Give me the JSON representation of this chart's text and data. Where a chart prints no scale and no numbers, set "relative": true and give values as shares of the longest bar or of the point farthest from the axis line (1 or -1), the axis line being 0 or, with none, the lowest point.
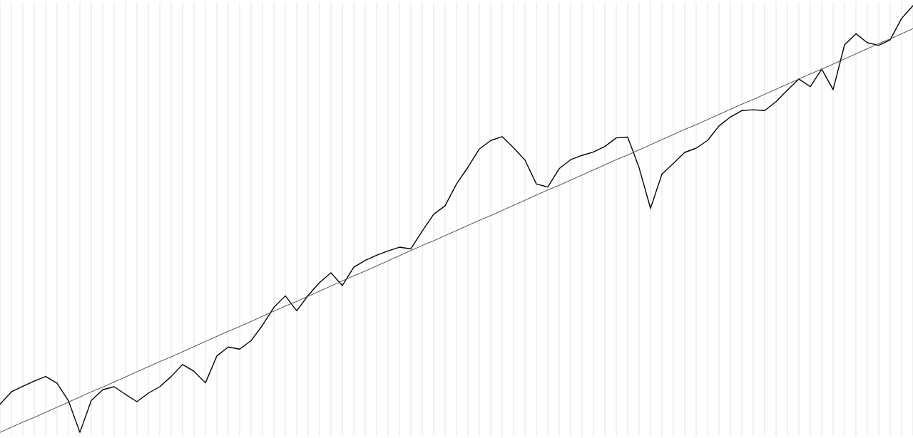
{
  "chart_data": {
    "type": "line",
    "relative": true,
    "grid": "x",
    "categories": [
      null,
      null,
      null,
      null,
      null,
      null,
      null,
      null,
      null,
      null,
      null,
      null,
      null,
      null,
      null,
      null,
      null,
      null,
      null,
      null,
      null,
      null,
      null,
      null,
      null,
      null,
      null,
      null,
      null,
      null,
      null,
      null,
      null,
      null,
      null,
      null,
      null,
      null,
      null,
      null,
      null,
      null,
      null,
      null,
      null,
      null,
      null,
      null,
      null,
      null,
      null,
      null,
      null,
      null,
      null,
      null,
      null,
      null,
      null,
      null,
      null,
      null,
      null,
      null,
      null,
      null,
      null,
      null,
      null,
      null,
      null,
      null,
      null,
      null,
      null,
      null,
      null,
      null,
      null,
      null,
      null
    ],
    "series": [
      {
        "color": "#000000",
        "values": [
          0.066,
          0.095,
          0.108,
          0.12,
          0.131,
          0.115,
          0.074,
          0,
          0.075,
          0.1,
          0.107,
          0.089,
          0.072,
          0.092,
          0.107,
          0.131,
          0.159,
          0.143,
          0.116,
          0.179,
          0.2,
          0.195,
          0.215,
          0.251,
          0.293,
          0.32,
          0.285,
          0.321,
          0.351,
          0.374,
          0.344,
          0.387,
          0.403,
          0.415,
          0.425,
          0.434,
          0.43,
          0.472,
          0.511,
          0.531,
          0.582,
          0.621,
          0.664,
          0.684,
          0.693,
          0.667,
          0.638,
          0.582,
          0.575,
          0.618,
          0.639,
          0.649,
          0.657,
          0.67,
          0.69,
          0.692,
          0.62,
          0.525,
          0.605,
          0.63,
          0.656,
          0.666,
          0.684,
          0.718,
          0.739,
          0.754,
          0.756,
          0.754,
          0.775,
          0.802,
          0.828,
          0.81,
          0.851,
          0.803,
          0.908,
          0.934,
          0.913,
          0.907,
          0.92,
          0.97,
          1
        ]
      },
      {
        "color": "#444444",
        "values": [
          0,
          0.012,
          0.024,
          0.035,
          0.047,
          0.059,
          0.071,
          0.083,
          0.095,
          0.106,
          0.118,
          0.13,
          0.142,
          0.154,
          0.166,
          0.177,
          0.189,
          0.201,
          0.213,
          0.225,
          0.237,
          0.248,
          0.26,
          0.272,
          0.284,
          0.296,
          0.307,
          0.319,
          0.331,
          0.343,
          0.355,
          0.367,
          0.378,
          0.39,
          0.402,
          0.414,
          0.426,
          0.438,
          0.449,
          0.461,
          0.473,
          0.485,
          0.497,
          0.508,
          0.52,
          0.532,
          0.544,
          0.556,
          0.568,
          0.579,
          0.591,
          0.603,
          0.615,
          0.627,
          0.639,
          0.65,
          0.662,
          0.674,
          0.686,
          0.698,
          0.71,
          0.721,
          0.733,
          0.745,
          0.757,
          0.769,
          0.78,
          0.792,
          0.804,
          0.816,
          0.828,
          0.84,
          0.851,
          0.863,
          0.875,
          0.887,
          0.899,
          0.911,
          0.922,
          0.934,
          0.946
        ]
      }
    ]
  }
}
